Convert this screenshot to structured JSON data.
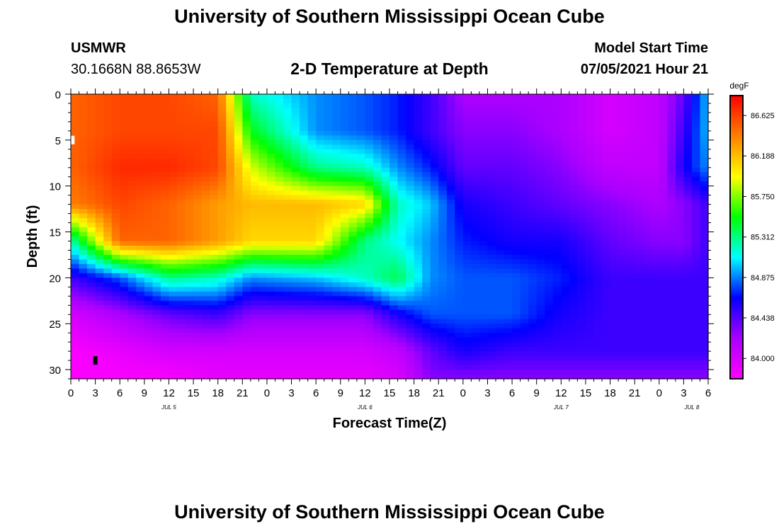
{
  "header": {
    "title": "University of Southern Mississippi Ocean Cube",
    "station": "USMWR",
    "coords": "30.1668N  88.8653W",
    "subtitle": "2-D Temperature at Depth",
    "start_label": "Model Start Time",
    "start_value": "07/05/2021 Hour 21"
  },
  "footer": {
    "title": "University of Southern Mississippi Ocean Cube"
  },
  "chart_data": {
    "type": "heatmap",
    "xlabel": "Forecast Time(Z)",
    "ylabel": "Depth (ft)",
    "x_ticks": [
      "0",
      "3",
      "6",
      "9",
      "12",
      "15",
      "18",
      "21",
      "0",
      "3",
      "6",
      "9",
      "12",
      "15",
      "18",
      "21",
      "0",
      "3",
      "6",
      "9",
      "12",
      "15",
      "18",
      "21",
      "0",
      "3",
      "6"
    ],
    "x_day_labels": [
      {
        "at_hour": 12,
        "text": "JUL 5"
      },
      {
        "at_hour": 36,
        "text": "JUL 6"
      },
      {
        "at_hour": 60,
        "text": "JUL 7"
      },
      {
        "at_hour": 76,
        "text": "JUL 8"
      }
    ],
    "xlim_hours": [
      0,
      78
    ],
    "y_ticks": [
      0,
      5,
      10,
      15,
      20,
      25,
      30
    ],
    "ylim": [
      0,
      31
    ],
    "y_inverted": true,
    "colorbar": {
      "unit": "degF",
      "labels": [
        "86.625",
        "86.188",
        "85.750",
        "85.312",
        "84.875",
        "84.438",
        "84.000"
      ],
      "range": [
        83.78,
        86.84
      ],
      "colors": [
        "#ff00ff",
        "#aa00ff",
        "#0000ff",
        "#00ffff",
        "#00ff00",
        "#ffff00",
        "#ff7f00",
        "#ff0000"
      ]
    },
    "markers": [
      {
        "hour": 0.2,
        "depth": 5,
        "color": "#ffffff"
      },
      {
        "hour": 3,
        "depth": 29,
        "color": "#000000"
      }
    ],
    "control_hours": [
      0,
      6,
      12,
      18,
      22,
      30,
      36,
      40,
      44,
      48,
      54,
      60,
      66,
      72,
      75,
      78
    ],
    "control_depths": [
      0,
      4,
      8,
      12,
      16,
      20,
      24,
      28,
      31
    ],
    "values": [
      [
        86.5,
        86.6,
        86.6,
        86.5,
        85.2,
        84.9,
        84.8,
        84.7,
        84.5,
        84.2,
        84.2,
        84.2,
        84.0,
        84.1,
        84.4,
        85.0
      ],
      [
        86.5,
        86.6,
        86.6,
        86.6,
        85.5,
        84.9,
        84.8,
        84.7,
        84.5,
        84.3,
        84.3,
        84.2,
        84.0,
        84.1,
        84.5,
        85.0
      ],
      [
        86.5,
        86.7,
        86.7,
        86.6,
        85.9,
        85.3,
        85.2,
        84.9,
        84.7,
        84.4,
        84.4,
        84.3,
        84.1,
        84.1,
        84.6,
        84.9
      ],
      [
        86.4,
        86.6,
        86.5,
        86.3,
        86.2,
        86.2,
        86.1,
        85.2,
        85.0,
        84.6,
        84.5,
        84.4,
        84.3,
        84.2,
        84.3,
        84.5
      ],
      [
        85.2,
        86.5,
        86.5,
        86.3,
        86.1,
        86.1,
        85.3,
        85.1,
        84.9,
        84.7,
        84.6,
        84.6,
        84.4,
        84.3,
        84.3,
        84.5
      ],
      [
        84.5,
        84.8,
        85.3,
        85.2,
        84.9,
        85.0,
        85.2,
        85.4,
        84.9,
        84.8,
        84.8,
        84.7,
        84.5,
        84.5,
        84.5,
        84.5
      ],
      [
        84.0,
        84.2,
        84.4,
        84.5,
        84.3,
        84.3,
        84.3,
        84.6,
        84.8,
        84.8,
        84.8,
        84.6,
        84.5,
        84.5,
        84.5,
        84.5
      ],
      [
        83.8,
        83.9,
        84.0,
        84.0,
        84.0,
        84.0,
        84.0,
        84.1,
        84.4,
        84.6,
        84.5,
        84.5,
        84.5,
        84.5,
        84.5,
        84.5
      ],
      [
        83.8,
        83.8,
        83.8,
        83.9,
        83.9,
        83.9,
        83.9,
        83.95,
        84.3,
        84.3,
        84.3,
        84.3,
        84.3,
        84.3,
        84.3,
        84.3
      ]
    ]
  }
}
